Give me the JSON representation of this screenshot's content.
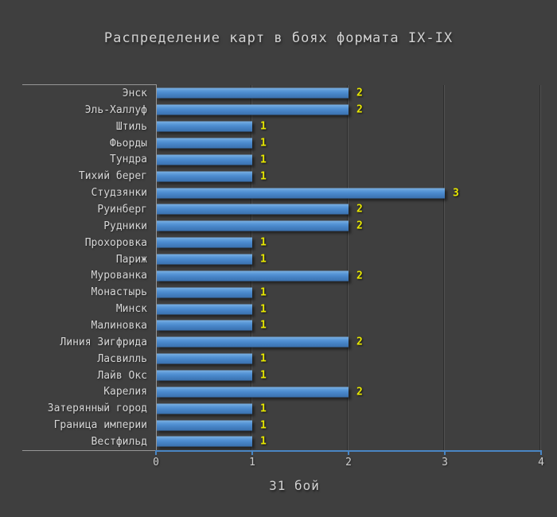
{
  "title": "Распределение карт в боях формата IX-IX",
  "chart_data": {
    "type": "bar",
    "orientation": "horizontal",
    "title": "Распределение карт в боях формата IX-IX",
    "categories": [
      "Энск",
      "Эль-Халлуф",
      "Штиль",
      "Фьорды",
      "Тундра",
      "Тихий берег",
      "Студзянки",
      "Руинберг",
      "Рудники",
      "Прохоровка",
      "Париж",
      "Мурованка",
      "Монастырь",
      "Минск",
      "Малиновка",
      "Линия Зигфрида",
      "Ласвилль",
      "Лайв Окс",
      "Карелия",
      "Затерянный город",
      "Граница империи",
      "Вестфильд"
    ],
    "values": [
      2,
      2,
      1,
      1,
      1,
      1,
      3,
      2,
      2,
      1,
      1,
      2,
      1,
      1,
      1,
      2,
      1,
      1,
      2,
      1,
      1,
      1
    ],
    "xlabel": "31 бой",
    "xlim": [
      0,
      4
    ],
    "xticks": [
      "0",
      "1",
      "2",
      "3",
      "4"
    ],
    "grid": true,
    "legend": "none",
    "value_labels_shown": true,
    "colors": {
      "background": "#3f3f3f",
      "bar_top": "#7cb1e2",
      "bar_bottom": "#3a70ae",
      "value_label": "#e8e800",
      "axis_line": "#4a86c4",
      "frame_line": "#969696",
      "text": "#d2d2d2"
    }
  }
}
